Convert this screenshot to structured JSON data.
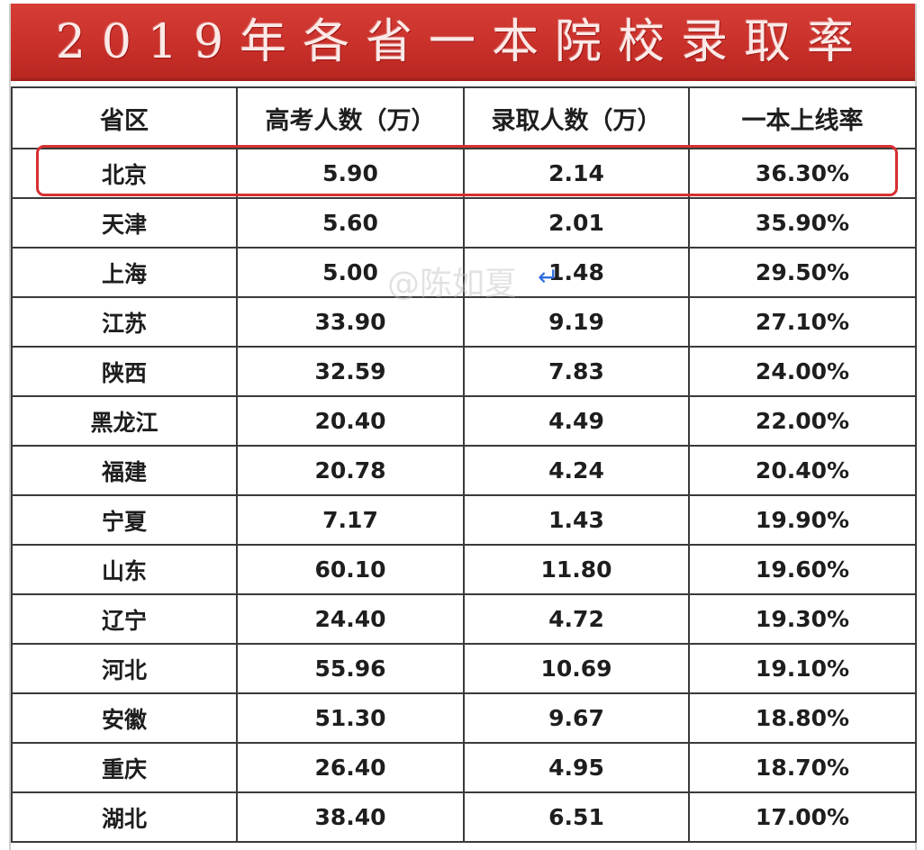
{
  "title": "2019年各省一本院校录取率",
  "columns": [
    "省区",
    "高考人数（万）",
    "录取人数（万）",
    "一本上线率"
  ],
  "rows": [
    {
      "province": "北京",
      "examinees": "5.90",
      "admitted": "2.14",
      "rate": "36.30%"
    },
    {
      "province": "天津",
      "examinees": "5.60",
      "admitted": "2.01",
      "rate": "35.90%"
    },
    {
      "province": "上海",
      "examinees": "5.00",
      "admitted": "1.48",
      "rate": "29.50%"
    },
    {
      "province": "江苏",
      "examinees": "33.90",
      "admitted": "9.19",
      "rate": "27.10%"
    },
    {
      "province": "陕西",
      "examinees": "32.59",
      "admitted": "7.83",
      "rate": "24.00%"
    },
    {
      "province": "黑龙江",
      "examinees": "20.40",
      "admitted": "4.49",
      "rate": "22.00%"
    },
    {
      "province": "福建",
      "examinees": "20.78",
      "admitted": "4.24",
      "rate": "20.40%"
    },
    {
      "province": "宁夏",
      "examinees": "7.17",
      "admitted": "1.43",
      "rate": "19.90%"
    },
    {
      "province": "山东",
      "examinees": "60.10",
      "admitted": "11.80",
      "rate": "19.60%"
    },
    {
      "province": "辽宁",
      "examinees": "24.40",
      "admitted": "4.72",
      "rate": "19.30%"
    },
    {
      "province": "河北",
      "examinees": "55.96",
      "admitted": "10.69",
      "rate": "19.10%"
    },
    {
      "province": "安徽",
      "examinees": "51.30",
      "admitted": "9.67",
      "rate": "18.80%"
    },
    {
      "province": "重庆",
      "examinees": "26.40",
      "admitted": "4.95",
      "rate": "18.70%"
    },
    {
      "province": "湖北",
      "examinees": "38.40",
      "admitted": "6.51",
      "rate": "17.00%"
    }
  ],
  "highlighted_row": "北京",
  "watermark": "@陈如夏",
  "return_mark": "↵",
  "colors": {
    "title_bar": "#c9302a",
    "title_text": "#fbe9e7",
    "highlight_border": "#d73030",
    "grid": "#3a3a3a"
  }
}
